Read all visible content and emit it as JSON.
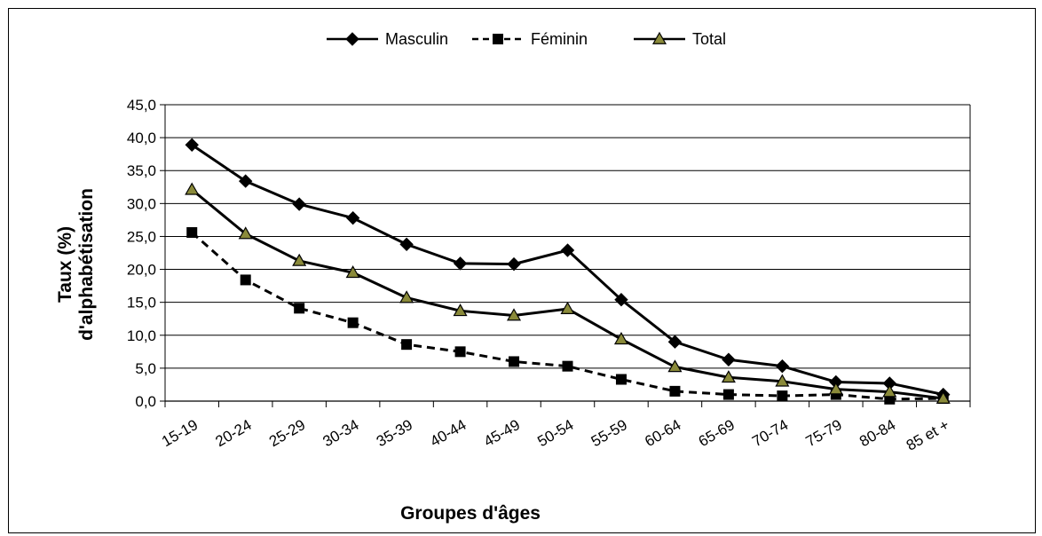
{
  "chart_data": {
    "type": "line",
    "title": "",
    "xlabel": "Groupes d'âges",
    "ylabel_lines": [
      "Taux (%)",
      "d'alphabétisation"
    ],
    "ylim": [
      0,
      45
    ],
    "yticks": [
      "0,0",
      "5,0",
      "10,0",
      "15,0",
      "20,0",
      "25,0",
      "30,0",
      "35,0",
      "40,0",
      "45,0"
    ],
    "categories": [
      "15-19",
      "20-24",
      "25-29",
      "30-34",
      "35-39",
      "40-44",
      "45-49",
      "50-54",
      "55-59",
      "60-64",
      "65-69",
      "70-74",
      "75-79",
      "80-84",
      "85  et +"
    ],
    "legend_position": "top-center",
    "grid": "horizontal",
    "series": [
      {
        "name": "Masculin",
        "marker": "diamond",
        "dash": "solid",
        "color": "#000000",
        "values": [
          38.9,
          33.4,
          29.9,
          27.8,
          23.8,
          20.9,
          20.8,
          22.9,
          15.4,
          9.0,
          6.3,
          5.3,
          2.9,
          2.7,
          1.0
        ]
      },
      {
        "name": "Féminin",
        "marker": "square",
        "dash": "dashed",
        "color": "#000000",
        "values": [
          25.6,
          18.4,
          14.1,
          11.9,
          8.6,
          7.5,
          6.0,
          5.3,
          3.3,
          1.5,
          1.0,
          0.8,
          1.0,
          0.3,
          0.4
        ]
      },
      {
        "name": "Total",
        "marker": "triangle",
        "dash": "solid",
        "color": "#000000",
        "values": [
          32.1,
          25.4,
          21.3,
          19.5,
          15.7,
          13.7,
          13.0,
          14.0,
          9.4,
          5.2,
          3.6,
          3.0,
          1.8,
          1.4,
          0.4
        ]
      }
    ],
    "marker_fill_triangle": "#8a8a3a"
  }
}
